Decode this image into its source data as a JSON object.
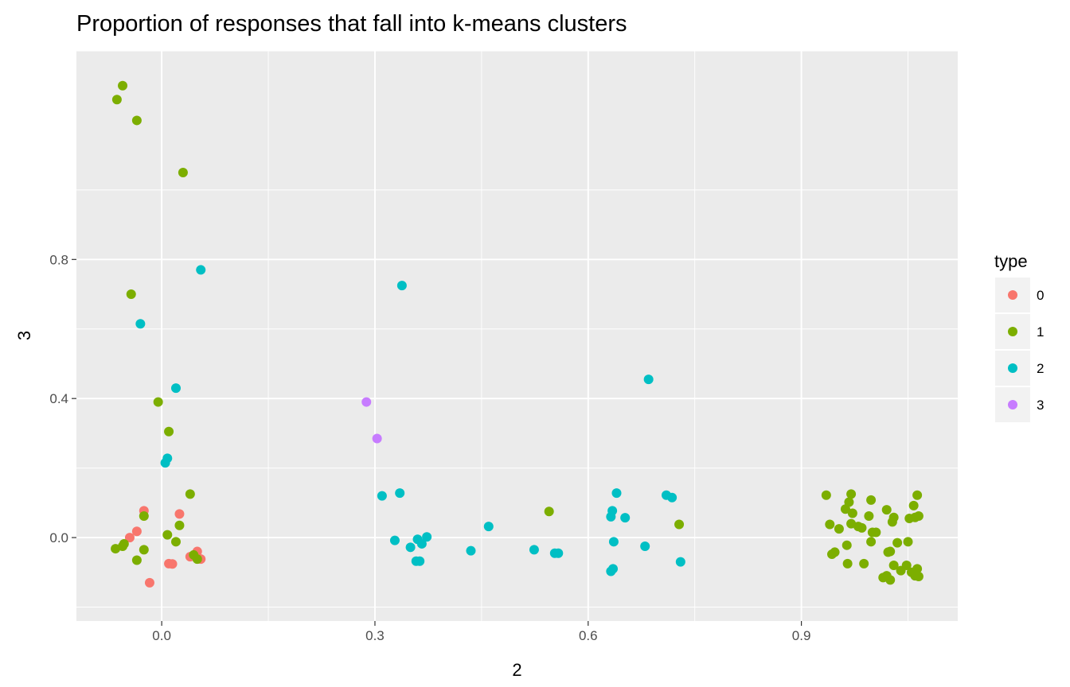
{
  "chart_data": {
    "type": "scatter",
    "title": "Proportion of responses that fall into k-means clusters",
    "xlabel": "2",
    "ylabel": "3",
    "xlim": [
      -0.12,
      1.12
    ],
    "ylim": [
      -0.24,
      1.4
    ],
    "x_ticks": [
      0.0,
      0.3,
      0.6,
      0.9
    ],
    "x_tick_labels": [
      "0.0",
      "0.3",
      "0.6",
      "0.9"
    ],
    "y_ticks": [
      0.0,
      0.4,
      0.8
    ],
    "y_tick_labels": [
      "0.0",
      "0.4",
      "0.8"
    ],
    "grid": true,
    "legend": {
      "title": "type",
      "position": "right",
      "entries": [
        {
          "label": "0",
          "color": "#F8766D"
        },
        {
          "label": "1",
          "color": "#7CAE00"
        },
        {
          "label": "2",
          "color": "#00BFC4"
        },
        {
          "label": "3",
          "color": "#C77CFF"
        }
      ]
    },
    "series": [
      {
        "name": "0",
        "color": "#F8766D",
        "points": [
          [
            -0.025,
            0.077
          ],
          [
            0.025,
            0.068
          ],
          [
            -0.035,
            0.018
          ],
          [
            -0.045,
            0.0
          ],
          [
            0.04,
            -0.055
          ],
          [
            0.05,
            -0.04
          ],
          [
            0.055,
            -0.062
          ],
          [
            0.01,
            -0.075
          ],
          [
            0.015,
            -0.076
          ],
          [
            -0.017,
            -0.13
          ]
        ]
      },
      {
        "name": "1",
        "color": "#7CAE00",
        "points": [
          [
            -0.055,
            1.3
          ],
          [
            -0.063,
            1.26
          ],
          [
            -0.035,
            1.2
          ],
          [
            0.03,
            1.05
          ],
          [
            -0.043,
            0.7
          ],
          [
            -0.005,
            0.39
          ],
          [
            0.01,
            0.305
          ],
          [
            0.04,
            0.125
          ],
          [
            -0.025,
            0.062
          ],
          [
            0.025,
            0.035
          ],
          [
            0.008,
            0.008
          ],
          [
            0.02,
            -0.012
          ],
          [
            -0.053,
            -0.018
          ],
          [
            -0.055,
            -0.025
          ],
          [
            -0.065,
            -0.032
          ],
          [
            -0.025,
            -0.035
          ],
          [
            -0.035,
            -0.065
          ],
          [
            0.045,
            -0.05
          ],
          [
            0.05,
            -0.062
          ],
          [
            0.545,
            0.075
          ],
          [
            0.728,
            0.038
          ],
          [
            0.935,
            0.122
          ],
          [
            0.94,
            0.038
          ],
          [
            0.943,
            -0.048
          ],
          [
            0.947,
            -0.042
          ],
          [
            0.953,
            0.025
          ],
          [
            0.962,
            0.082
          ],
          [
            0.964,
            -0.022
          ],
          [
            0.965,
            -0.075
          ],
          [
            0.967,
            0.102
          ],
          [
            0.97,
            0.125
          ],
          [
            0.97,
            0.04
          ],
          [
            0.972,
            0.07
          ],
          [
            0.98,
            0.032
          ],
          [
            0.985,
            0.028
          ],
          [
            0.988,
            -0.075
          ],
          [
            0.995,
            0.062
          ],
          [
            0.998,
            0.108
          ],
          [
            0.998,
            -0.012
          ],
          [
            1.0,
            0.015
          ],
          [
            1.005,
            0.015
          ],
          [
            1.02,
            0.08
          ],
          [
            1.022,
            -0.042
          ],
          [
            1.025,
            -0.04
          ],
          [
            1.028,
            0.045
          ],
          [
            1.03,
            0.058
          ],
          [
            1.035,
            -0.015
          ],
          [
            1.03,
            -0.08
          ],
          [
            1.02,
            -0.11
          ],
          [
            1.015,
            -0.115
          ],
          [
            1.025,
            -0.122
          ],
          [
            1.04,
            -0.095
          ],
          [
            1.048,
            -0.08
          ],
          [
            1.05,
            -0.012
          ],
          [
            1.052,
            0.055
          ],
          [
            1.055,
            -0.1
          ],
          [
            1.058,
            0.092
          ],
          [
            1.06,
            0.058
          ],
          [
            1.063,
            0.122
          ],
          [
            1.065,
            0.062
          ],
          [
            1.063,
            -0.09
          ],
          [
            1.06,
            -0.11
          ],
          [
            1.065,
            -0.112
          ]
        ]
      },
      {
        "name": "2",
        "color": "#00BFC4",
        "points": [
          [
            0.055,
            0.77
          ],
          [
            -0.03,
            0.615
          ],
          [
            0.02,
            0.43
          ],
          [
            0.008,
            0.228
          ],
          [
            0.005,
            0.215
          ],
          [
            0.338,
            0.725
          ],
          [
            0.685,
            0.455
          ],
          [
            0.31,
            0.12
          ],
          [
            0.335,
            0.128
          ],
          [
            0.328,
            -0.008
          ],
          [
            0.35,
            -0.028
          ],
          [
            0.358,
            -0.068
          ],
          [
            0.363,
            -0.068
          ],
          [
            0.36,
            -0.005
          ],
          [
            0.366,
            -0.018
          ],
          [
            0.373,
            0.002
          ],
          [
            0.435,
            -0.038
          ],
          [
            0.46,
            0.032
          ],
          [
            0.524,
            -0.035
          ],
          [
            0.553,
            -0.045
          ],
          [
            0.558,
            -0.045
          ],
          [
            0.632,
            0.06
          ],
          [
            0.634,
            0.077
          ],
          [
            0.636,
            -0.012
          ],
          [
            0.64,
            0.128
          ],
          [
            0.652,
            0.057
          ],
          [
            0.68,
            -0.025
          ],
          [
            0.71,
            0.122
          ],
          [
            0.718,
            0.115
          ],
          [
            0.73,
            -0.07
          ],
          [
            0.632,
            -0.097
          ],
          [
            0.635,
            -0.09
          ]
        ]
      },
      {
        "name": "3",
        "color": "#C77CFF",
        "points": [
          [
            0.288,
            0.39
          ],
          [
            0.303,
            0.285
          ]
        ]
      }
    ]
  }
}
